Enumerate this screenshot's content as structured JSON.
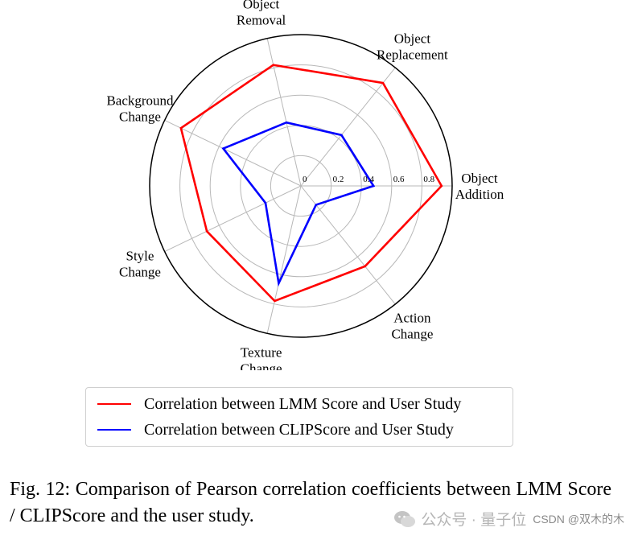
{
  "chart_data": {
    "type": "radar",
    "axes": [
      "Object\nAddition",
      "Object\nReplacement",
      "Object\nRemoval",
      "Background\nChange",
      "Style\nChange",
      "Texture\nChange",
      "Action\nChange"
    ],
    "rmax": 1.0,
    "ticks": [
      0,
      0.2,
      0.4,
      0.6,
      0.8
    ],
    "grid": true,
    "series": [
      {
        "name": "Correlation between LMM Score and User Study",
        "color": "#ff0000",
        "values": [
          0.93,
          0.87,
          0.82,
          0.88,
          0.69,
          0.78,
          0.68
        ]
      },
      {
        "name": "Correlation between CLIPScore and User Study",
        "color": "#0000ff",
        "values": [
          0.48,
          0.43,
          0.43,
          0.57,
          0.26,
          0.66,
          0.16
        ]
      }
    ],
    "legend_position": "bottom"
  },
  "legend": {
    "items": [
      {
        "label": "Correlation between LMM Score and User Study",
        "color": "#ff0000"
      },
      {
        "label": "Correlation between CLIPScore and User Study",
        "color": "#0000ff"
      }
    ]
  },
  "caption": "Fig. 12: Comparison of Pearson correlation coefficients between LMM Score / CLIPScore and the user study.",
  "watermark": {
    "account": "公众号 · 量子位",
    "site": "CSDN @双木的木"
  }
}
